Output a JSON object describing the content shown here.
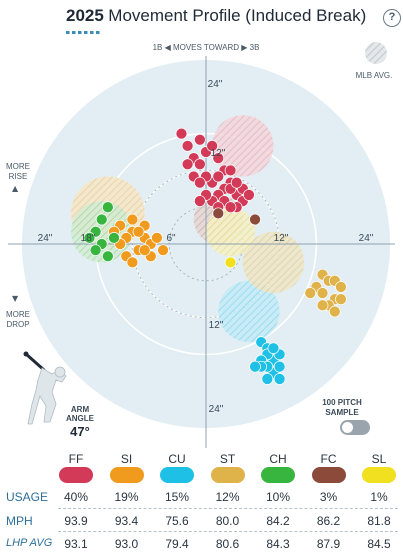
{
  "header": {
    "year": "2025",
    "title": "Movement Profile (Induced Break)",
    "help_label": "?"
  },
  "chart_data": {
    "type": "scatter",
    "title": "Movement Profile (Induced Break)",
    "direction_label": "1B ◀ MOVES TOWARD ▶ 3B",
    "mlb_avg_label": "MLB AVG.",
    "more_rise_label": [
      "MORE",
      "RISE"
    ],
    "more_drop_label": [
      "MORE",
      "DROP"
    ],
    "ring_labels": {
      "top_outer": "24\"",
      "top_inner": "12\"",
      "left_outer": "24\"",
      "left_mid": "18\"",
      "left_inner": "6\"",
      "right_inner": "12\"",
      "right_outer": "24\"",
      "bottom_inner": "12\"",
      "bottom_outer": "24\""
    },
    "xlim": [
      -30,
      30
    ],
    "ylim": [
      -30,
      30
    ],
    "x_axis": "horizontal break (in), positive toward 3B",
    "y_axis": "induced vertical break (in)",
    "series": [
      {
        "name": "FF",
        "color": "#d23a58",
        "mlb_avg": {
          "x": 6,
          "y": 16,
          "r": 5
        },
        "points": [
          [
            -4,
            18
          ],
          [
            -3,
            16
          ],
          [
            -2,
            14
          ],
          [
            -1,
            17
          ],
          [
            -3,
            13
          ],
          [
            -2,
            11
          ],
          [
            -1,
            13
          ],
          [
            0,
            15
          ],
          [
            1,
            16
          ],
          [
            2,
            14
          ],
          [
            3,
            12
          ],
          [
            4,
            10
          ],
          [
            5,
            8
          ],
          [
            3,
            9
          ],
          [
            2,
            8
          ],
          [
            1,
            10
          ],
          [
            0,
            11
          ],
          [
            -1,
            10
          ],
          [
            2,
            11
          ],
          [
            4,
            9
          ],
          [
            6,
            9
          ],
          [
            6,
            7
          ],
          [
            5,
            6
          ],
          [
            3,
            7
          ],
          [
            1,
            7
          ],
          [
            0,
            8
          ],
          [
            4,
            6
          ],
          [
            2,
            6
          ],
          [
            -1,
            7
          ],
          [
            7,
            8
          ],
          [
            5,
            10
          ],
          [
            4,
            12
          ]
        ]
      },
      {
        "name": "SI",
        "color": "#f09a1e",
        "mlb_avg": {
          "x": -16,
          "y": 5,
          "r": 6
        },
        "points": [
          [
            -14,
            3
          ],
          [
            -12,
            2
          ],
          [
            -10,
            1
          ],
          [
            -9,
            0
          ],
          [
            -11,
            -1
          ],
          [
            -13,
            1
          ],
          [
            -12,
            4
          ],
          [
            -15,
            2
          ],
          [
            -10,
            3
          ],
          [
            -8,
            1
          ],
          [
            -11,
            2
          ],
          [
            -7,
            -1
          ],
          [
            -13,
            -2
          ],
          [
            -9,
            -2
          ],
          [
            -12,
            -3
          ],
          [
            -14,
            0
          ],
          [
            -10,
            -1
          ]
        ]
      },
      {
        "name": "CU",
        "color": "#1ec0e6",
        "mlb_avg": {
          "x": 7,
          "y": -11,
          "r": 5
        },
        "points": [
          [
            9,
            -16
          ],
          [
            10,
            -17
          ],
          [
            11,
            -19
          ],
          [
            10,
            -18
          ],
          [
            9,
            -19
          ],
          [
            12,
            -18
          ],
          [
            11,
            -21
          ],
          [
            10,
            -20
          ],
          [
            12,
            -20
          ],
          [
            9,
            -20
          ],
          [
            11,
            -17
          ],
          [
            12,
            -22
          ],
          [
            10,
            -22
          ],
          [
            8,
            -20
          ]
        ]
      },
      {
        "name": "ST",
        "color": "#e0b24a",
        "mlb_avg": {
          "x": 11,
          "y": -3,
          "r": 5
        },
        "points": [
          [
            19,
            -5
          ],
          [
            20,
            -6
          ],
          [
            21,
            -6
          ],
          [
            22,
            -7
          ],
          [
            18,
            -7
          ],
          [
            17,
            -8
          ],
          [
            19,
            -8
          ],
          [
            21,
            -9
          ],
          [
            20,
            -10
          ],
          [
            22,
            -9
          ],
          [
            19,
            -10
          ],
          [
            21,
            -11
          ]
        ]
      },
      {
        "name": "CH",
        "color": "#37b53e",
        "mlb_avg": {
          "x": -17,
          "y": 2,
          "r": 5
        },
        "points": [
          [
            -16,
            6
          ],
          [
            -17,
            4
          ],
          [
            -18,
            2
          ],
          [
            -19,
            1
          ],
          [
            -17,
            0
          ],
          [
            -16,
            -2
          ],
          [
            -18,
            -1
          ],
          [
            -15,
            1
          ]
        ]
      },
      {
        "name": "FC",
        "color": "#8b4a3a",
        "mlb_avg": {
          "x": 2,
          "y": 4,
          "r": 4
        },
        "points": [
          [
            2,
            5
          ],
          [
            8,
            4
          ]
        ]
      },
      {
        "name": "SL",
        "color": "#f0e020",
        "mlb_avg": {
          "x": 4,
          "y": 2,
          "r": 4
        },
        "points": [
          [
            4,
            -3
          ]
        ]
      }
    ]
  },
  "sample_toggle": {
    "label": [
      "100 PITCH",
      "SAMPLE"
    ],
    "state": "off"
  },
  "arm_angle": {
    "label": [
      "ARM",
      "ANGLE"
    ],
    "value": "47°"
  },
  "table": {
    "row_labels": {
      "usage": "USAGE",
      "mph": "MPH",
      "lhp_avg": "LHP AVG"
    },
    "pitches": [
      {
        "type": "FF",
        "color": "#d23a58",
        "usage": "40%",
        "mph": "93.9",
        "lhp_avg": "93.1"
      },
      {
        "type": "SI",
        "color": "#f09a1e",
        "usage": "19%",
        "mph": "93.4",
        "lhp_avg": "93.0"
      },
      {
        "type": "CU",
        "color": "#1ec0e6",
        "usage": "15%",
        "mph": "75.6",
        "lhp_avg": "79.4"
      },
      {
        "type": "ST",
        "color": "#e0b24a",
        "usage": "12%",
        "mph": "80.0",
        "lhp_avg": "80.6"
      },
      {
        "type": "CH",
        "color": "#37b53e",
        "usage": "10%",
        "mph": "84.2",
        "lhp_avg": "84.3"
      },
      {
        "type": "FC",
        "color": "#8b4a3a",
        "usage": "3%",
        "mph": "86.2",
        "lhp_avg": "87.9"
      },
      {
        "type": "SL",
        "color": "#f0e020",
        "usage": "1%",
        "mph": "81.8",
        "lhp_avg": "84.5"
      }
    ]
  }
}
